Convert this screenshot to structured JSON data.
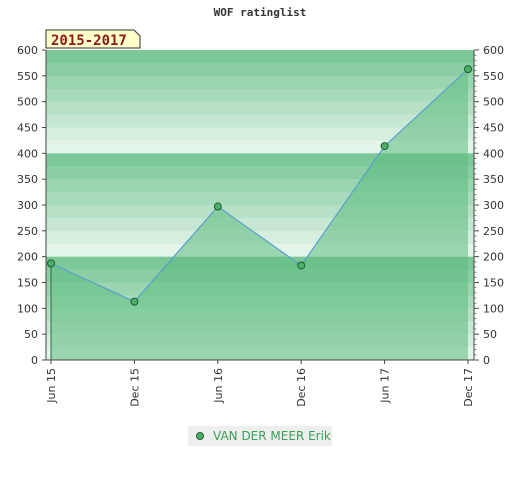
{
  "chart_data": {
    "type": "area",
    "title": "WOF ratinglist",
    "badge": "2015-2017",
    "categories": [
      "Jun 15",
      "Dec 15",
      "Jun 16",
      "Dec 16",
      "Jun 17",
      "Dec 17"
    ],
    "series": [
      {
        "name": "VAN DER MEER Erik",
        "values": [
          187,
          113,
          297,
          183,
          414,
          563
        ]
      }
    ],
    "y_ticks": [
      "0",
      "50",
      "100",
      "150",
      "200",
      "250",
      "300",
      "350",
      "400",
      "450",
      "500",
      "550",
      "600"
    ],
    "ylim": [
      0,
      600
    ],
    "legend_position": "bottom",
    "colors": {
      "band_dark": "#7cc898",
      "band_light": "#f2faf4",
      "area_fill": "#5dbb7e",
      "line": "#5aa0d0",
      "marker": "#4caf6a",
      "badge_bg": "#ffffcc"
    }
  }
}
